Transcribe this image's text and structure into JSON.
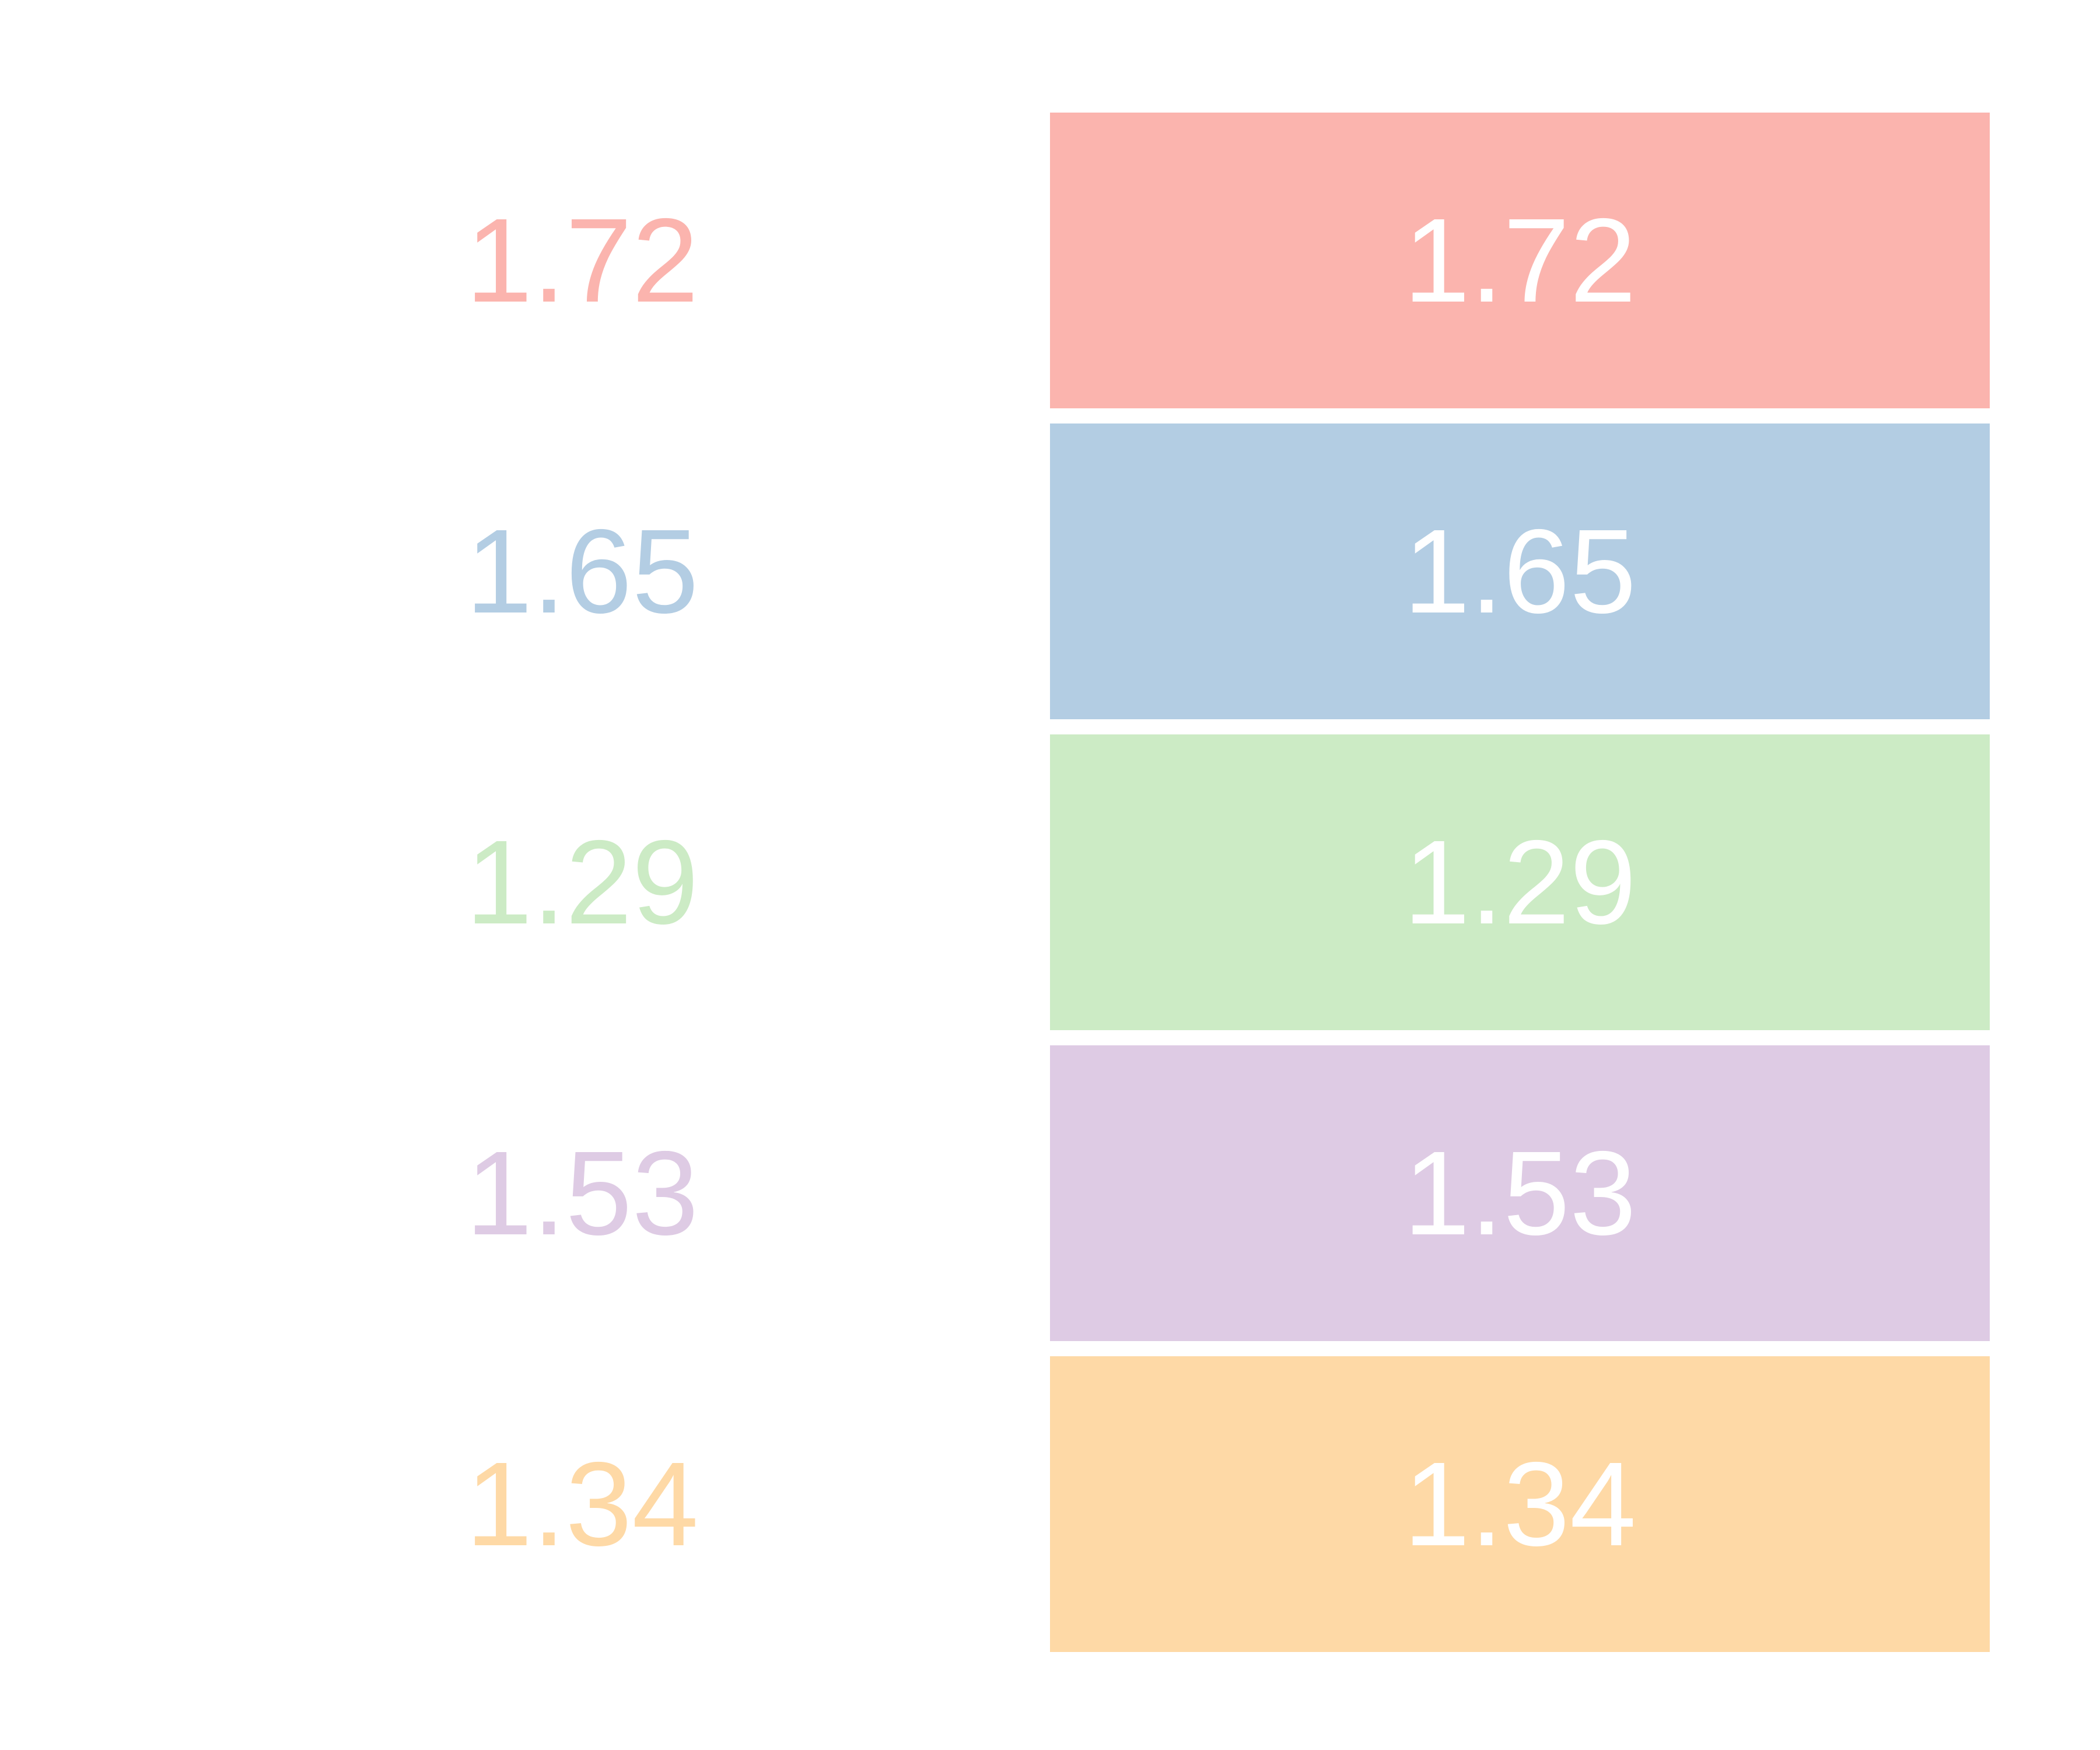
{
  "background_color": "#ffffff",
  "bar_text_color": "#ffffff",
  "chart_data": {
    "type": "bar",
    "orientation": "horizontal",
    "equal_length_bars": true,
    "grid": false,
    "axes_visible": false,
    "legend": false,
    "title": "",
    "values": [
      1.72,
      1.65,
      1.29,
      1.53,
      1.34
    ],
    "rows": [
      {
        "value_label": "1.72",
        "bar_label": "1.72",
        "color": "#fbb4ae"
      },
      {
        "value_label": "1.65",
        "bar_label": "1.65",
        "color": "#b3cde3"
      },
      {
        "value_label": "1.29",
        "bar_label": "1.29",
        "color": "#ccebc5"
      },
      {
        "value_label": "1.53",
        "bar_label": "1.53",
        "color": "#decbe4"
      },
      {
        "value_label": "1.34",
        "bar_label": "1.34",
        "color": "#fed9a6"
      }
    ]
  }
}
